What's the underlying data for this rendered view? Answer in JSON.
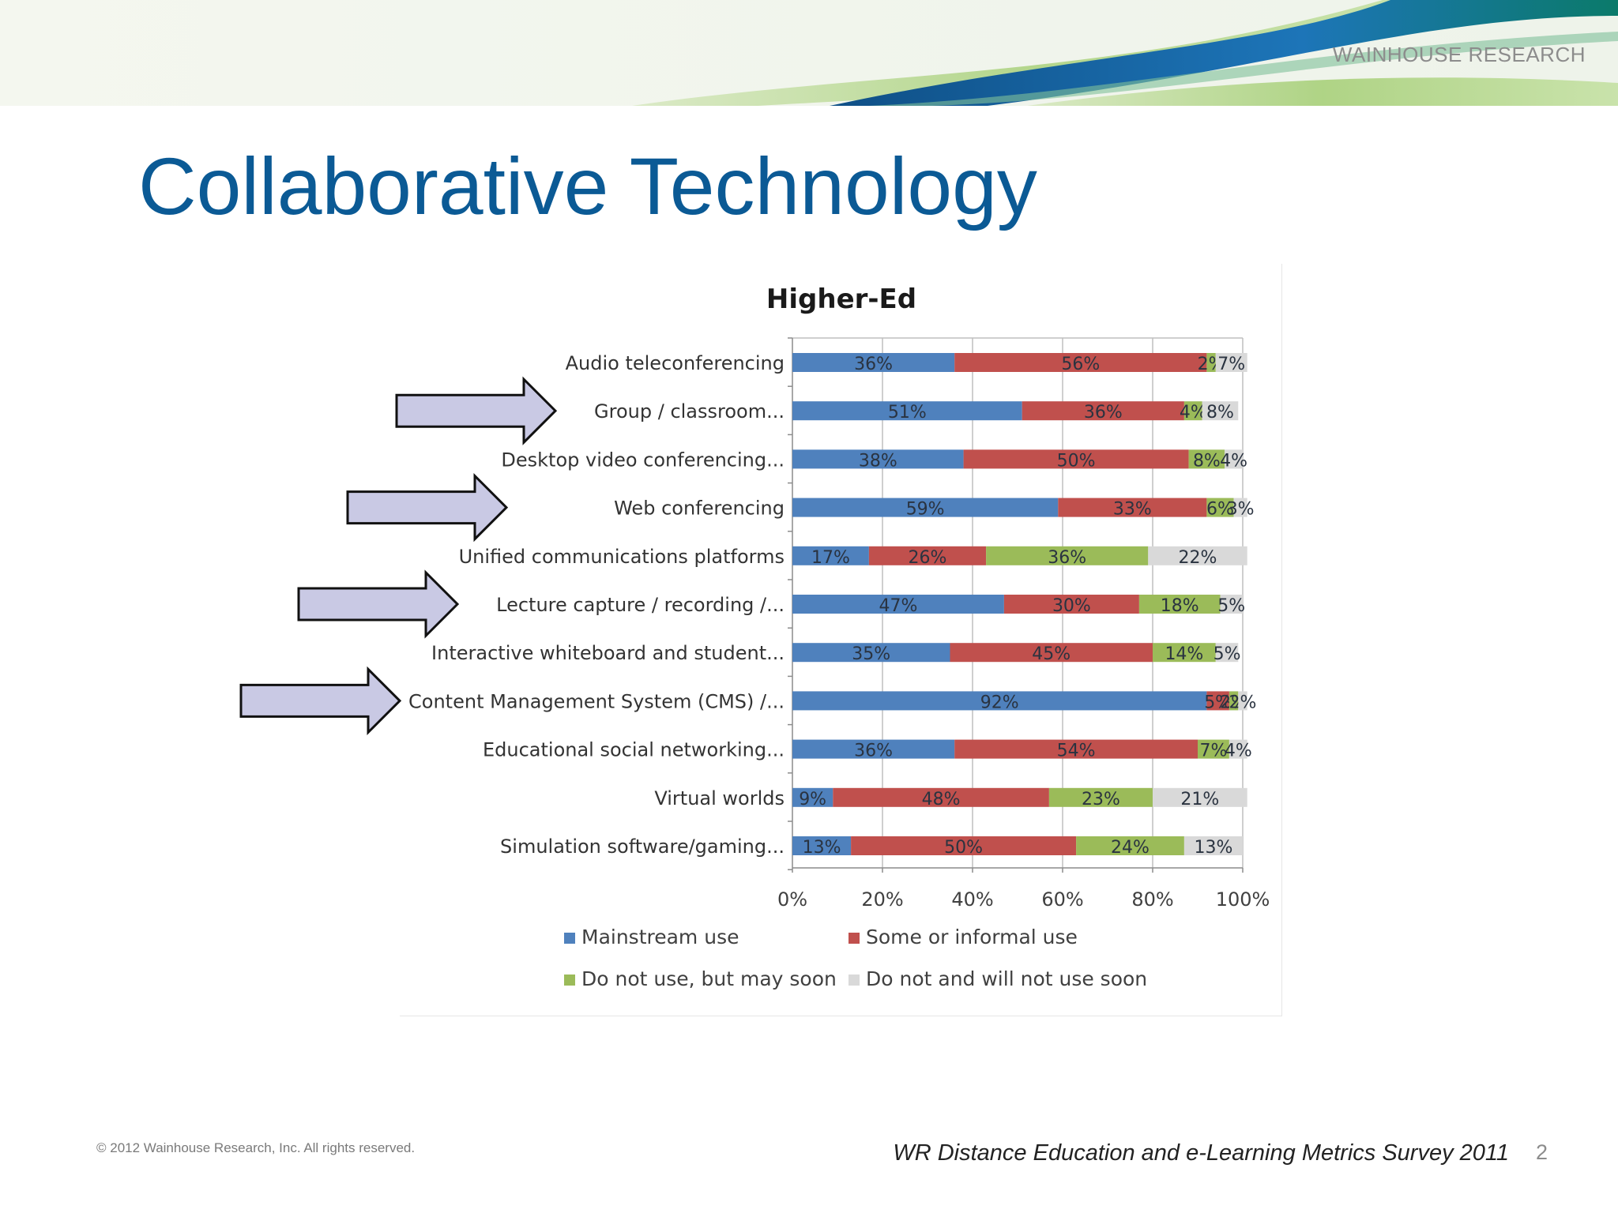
{
  "header": {
    "brand": "WAINHOUSE RESEARCH",
    "title": "Collaborative Technology"
  },
  "footer": {
    "copyright": "© 2012 Wainhouse Research, Inc. All rights reserved.",
    "survey": "WR Distance Education and e-Learning Metrics Survey 2011",
    "page_number": "2"
  },
  "colors": {
    "title": "#0b5a95",
    "mainstream": "#4f81bd",
    "some": "#c0504d",
    "maybe": "#9bbb59",
    "none": "#d9d9d9",
    "arrow_fill": "#c9c9e4"
  },
  "chart_data": {
    "type": "bar",
    "orientation": "horizontal",
    "stacked": "100%",
    "title": "Higher-Ed",
    "categories": [
      "Audio teleconferencing",
      "Group / classroom...",
      "Desktop video conferencing...",
      "Web conferencing",
      "Unified communications platforms",
      "Lecture capture / recording /...",
      "Interactive whiteboard and student...",
      "Content Management System (CMS) /...",
      "Educational social networking...",
      "Virtual worlds",
      "Simulation software/gaming..."
    ],
    "series": [
      {
        "name": "Mainstream use",
        "color": "#4f81bd",
        "values": [
          36,
          51,
          38,
          59,
          17,
          47,
          35,
          92,
          36,
          9,
          13
        ]
      },
      {
        "name": "Some or informal use",
        "color": "#c0504d",
        "values": [
          56,
          36,
          50,
          33,
          26,
          30,
          45,
          5,
          54,
          48,
          50
        ]
      },
      {
        "name": "Do not use, but may soon",
        "color": "#9bbb59",
        "values": [
          2,
          4,
          8,
          6,
          36,
          18,
          14,
          2,
          7,
          23,
          24
        ]
      },
      {
        "name": "Do not and will not use soon",
        "color": "#d9d9d9",
        "values": [
          7,
          8,
          4,
          3,
          22,
          5,
          5,
          2,
          4,
          21,
          13
        ]
      }
    ],
    "xlim": [
      0,
      100
    ],
    "xticks": [
      "0%",
      "20%",
      "40%",
      "60%",
      "80%",
      "100%"
    ],
    "legend_position": "bottom",
    "arrows_pointing_to": [
      "Group / classroom...",
      "Web conferencing",
      "Lecture capture / recording /...",
      "Content Management System (CMS) /..."
    ]
  }
}
